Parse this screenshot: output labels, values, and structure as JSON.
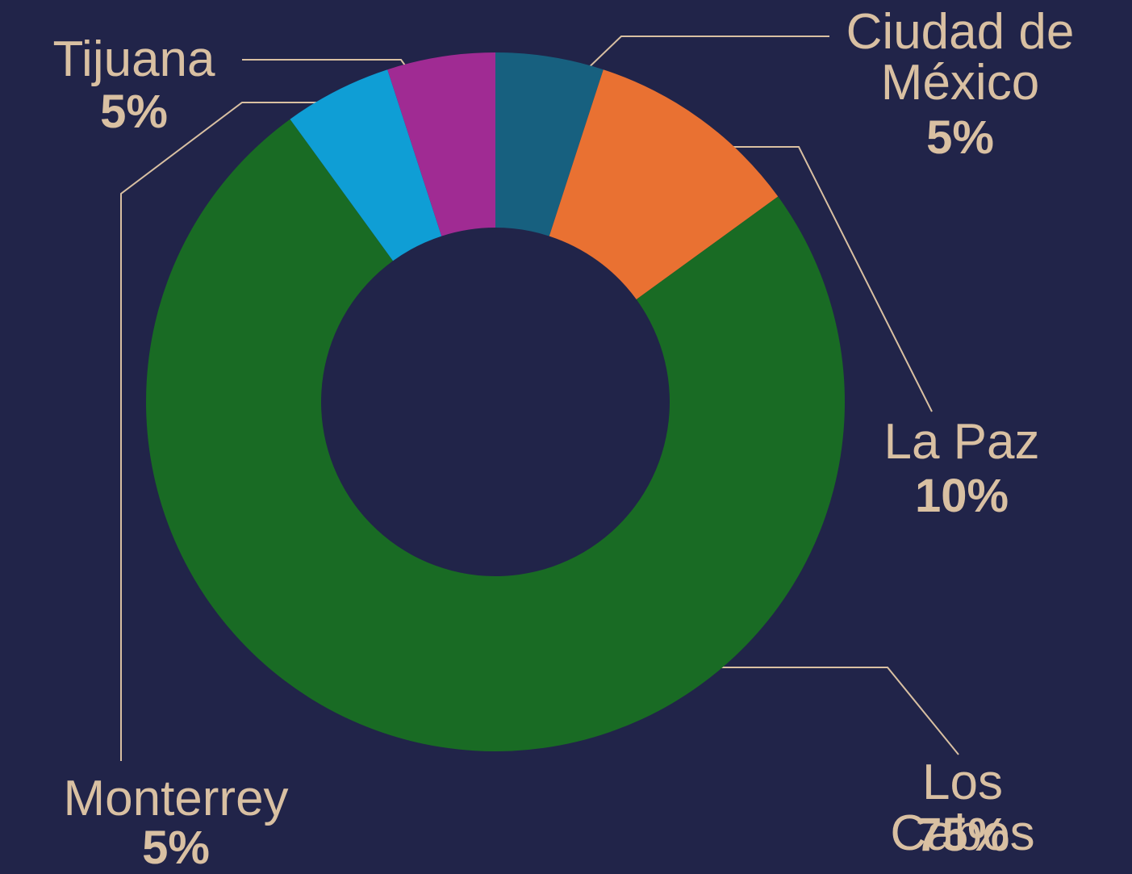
{
  "chart_data": {
    "type": "donut",
    "categories": [
      "Ciudad de México",
      "La Paz",
      "Los Cabos",
      "Monterrey",
      "Tijuana"
    ],
    "values": [
      5,
      10,
      75,
      5,
      5
    ],
    "value_labels": [
      "5%",
      "10%",
      "75%",
      "5%",
      "5%"
    ],
    "colors": [
      "#17607f",
      "#e97132",
      "#196b24",
      "#0f9ed5",
      "#a02b93"
    ]
  }
}
